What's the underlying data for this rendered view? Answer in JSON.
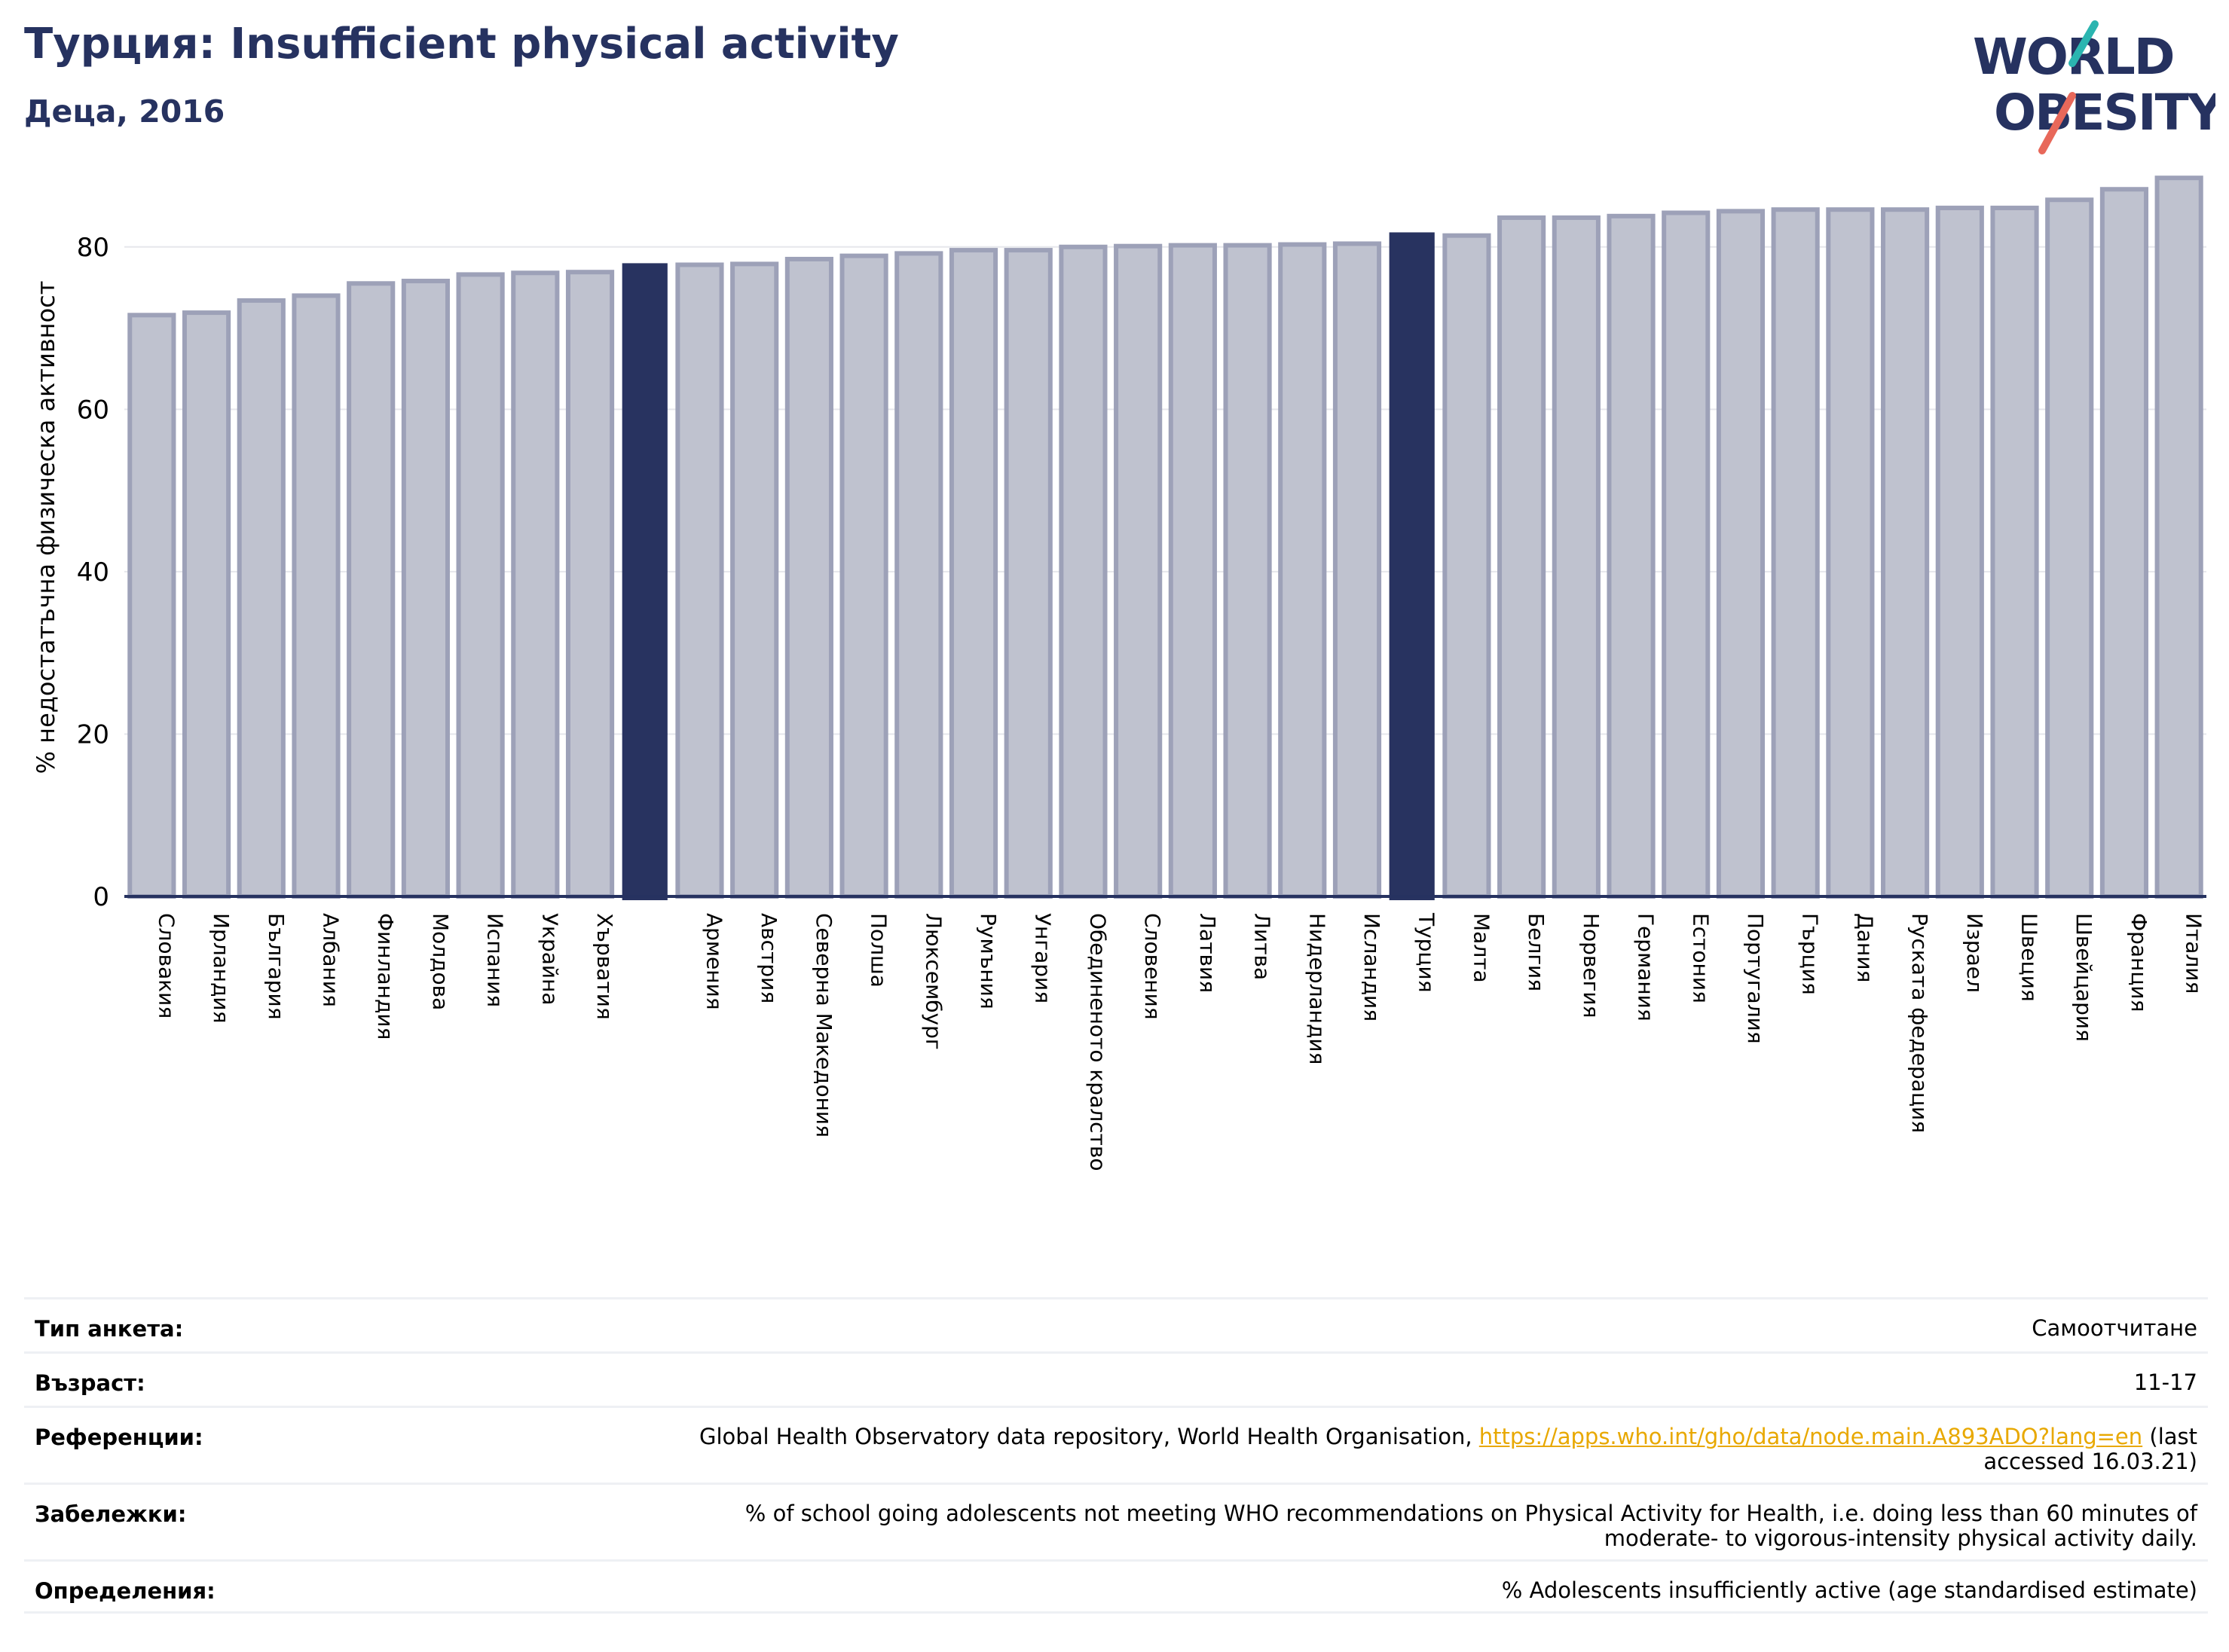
{
  "header": {
    "title": "Турция: Insufficient physical activity",
    "subtitle": "Деца, 2016"
  },
  "logo": {
    "line1": "WORLD",
    "line2": "OBESITY",
    "accent_colors": [
      "#2bb5b0",
      "#e8685a"
    ]
  },
  "colors": {
    "highlight": "#283360",
    "bar_fill": "#bfc2cf",
    "bar_edge": "#9da1b8",
    "axis": "#263260",
    "title": "#263260",
    "link": "#e8a800"
  },
  "chart_data": {
    "type": "bar",
    "ylabel": "% недостатъчна физическа активност",
    "ylim": [
      0,
      90
    ],
    "yticks": [
      0,
      20,
      40,
      60,
      80
    ],
    "grid": true,
    "categories": [
      "Словакия",
      "Ирландия",
      "България",
      "Албания",
      "Финландия",
      "Молдова",
      "Испания",
      "Украйна",
      "Хърватия",
      "",
      "Армения",
      "Австрия",
      "Северна Македония",
      "Полша",
      "Люксембург",
      "Румъния",
      "Унгария",
      "Обединеното кралство",
      "Словения",
      "Латвия",
      "Литва",
      "Нидерландия",
      "Исландия",
      "Турция",
      "Малта",
      "Белгия",
      "Норвегия",
      "Германия",
      "Естония",
      "Португалия",
      "Гърция",
      "Дания",
      "Руската федерация",
      "Израел",
      "Швеция",
      "Швейцария",
      "Франция",
      "Италия"
    ],
    "values": [
      71.6,
      71.9,
      73.4,
      74.0,
      75.5,
      75.8,
      76.6,
      76.8,
      76.9,
      77.9,
      77.8,
      77.9,
      78.5,
      78.9,
      79.2,
      79.6,
      79.6,
      80.0,
      80.1,
      80.2,
      80.2,
      80.3,
      80.4,
      81.7,
      81.4,
      83.6,
      83.6,
      83.8,
      84.2,
      84.4,
      84.6,
      84.6,
      84.6,
      84.8,
      84.8,
      85.8,
      87.1,
      88.5
    ],
    "highlighted_indices": [
      9,
      23
    ]
  },
  "info_table": [
    {
      "label": "Тип анкета:",
      "value_lines": [
        "Самоотчитане"
      ]
    },
    {
      "label": "Възраст:",
      "value_lines": [
        "11-17"
      ]
    },
    {
      "label": "Референции:",
      "value_prefix": "Global Health Observatory data repository, World Health Organisation, ",
      "link_text": "https://apps.who.int/gho/data/node.main.A893ADO?lang=en",
      "value_suffix": " (last",
      "value_line2": "accessed 16.03.21)"
    },
    {
      "label": "Забележки:",
      "value_lines": [
        "% of school going adolescents not meeting WHO recommendations on Physical Activity for Health, i.e. doing less than 60 minutes of",
        "moderate- to vigorous-intensity physical activity daily."
      ]
    },
    {
      "label": "Определения:",
      "value_lines": [
        "% Adolescents insufficiently active (age standardised estimate)"
      ]
    }
  ]
}
